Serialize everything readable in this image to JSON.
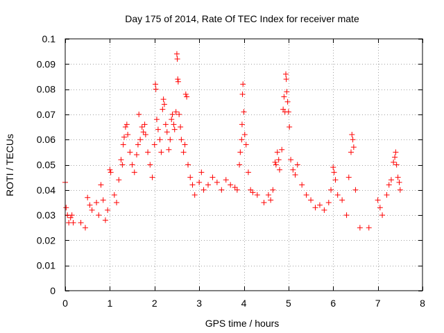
{
  "chart_data": {
    "type": "scatter",
    "title": "Day 175 of 2014, Rate Of TEC Index for receiver mate",
    "xlabel": "GPS time / hours",
    "ylabel": "ROTI / TECUs",
    "xlim": [
      0,
      8
    ],
    "ylim": [
      0,
      0.1
    ],
    "xticks": [
      0,
      1,
      2,
      3,
      4,
      5,
      6,
      7,
      8
    ],
    "yticks": [
      0,
      0.01,
      0.02,
      0.03,
      0.04,
      0.05,
      0.06,
      0.07,
      0.08,
      0.09,
      0.1
    ],
    "xtick_labels": [
      "0",
      "1",
      "2",
      "3",
      "4",
      "5",
      "6",
      "7",
      "8"
    ],
    "ytick_labels": [
      "0",
      "0.01",
      "0.02",
      "0.03",
      "0.04",
      "0.05",
      "0.06",
      "0.07",
      "0.08",
      "0.09",
      "0.1"
    ],
    "grid": true,
    "marker": "plus",
    "color": "#ff0000",
    "series": [
      {
        "name": "ROTI",
        "points": [
          [
            0.0,
            0.043
          ],
          [
            0.02,
            0.033
          ],
          [
            0.05,
            0.03
          ],
          [
            0.08,
            0.027
          ],
          [
            0.12,
            0.029
          ],
          [
            0.15,
            0.03
          ],
          [
            0.18,
            0.027
          ],
          [
            0.35,
            0.027
          ],
          [
            0.45,
            0.025
          ],
          [
            0.5,
            0.037
          ],
          [
            0.55,
            0.034
          ],
          [
            0.6,
            0.032
          ],
          [
            0.7,
            0.035
          ],
          [
            0.75,
            0.03
          ],
          [
            0.8,
            0.042
          ],
          [
            0.85,
            0.036
          ],
          [
            0.9,
            0.028
          ],
          [
            0.95,
            0.032
          ],
          [
            1.0,
            0.048
          ],
          [
            1.02,
            0.047
          ],
          [
            1.1,
            0.038
          ],
          [
            1.15,
            0.035
          ],
          [
            1.2,
            0.044
          ],
          [
            1.25,
            0.052
          ],
          [
            1.28,
            0.05
          ],
          [
            1.3,
            0.058
          ],
          [
            1.32,
            0.061
          ],
          [
            1.35,
            0.065
          ],
          [
            1.38,
            0.066
          ],
          [
            1.4,
            0.062
          ],
          [
            1.45,
            0.055
          ],
          [
            1.5,
            0.05
          ],
          [
            1.55,
            0.047
          ],
          [
            1.6,
            0.054
          ],
          [
            1.63,
            0.058
          ],
          [
            1.65,
            0.07
          ],
          [
            1.68,
            0.06
          ],
          [
            1.72,
            0.065
          ],
          [
            1.75,
            0.063
          ],
          [
            1.78,
            0.066
          ],
          [
            1.8,
            0.062
          ],
          [
            1.85,
            0.055
          ],
          [
            1.9,
            0.05
          ],
          [
            1.95,
            0.045
          ],
          [
            2.0,
            0.058
          ],
          [
            2.02,
            0.082
          ],
          [
            2.03,
            0.08
          ],
          [
            2.05,
            0.068
          ],
          [
            2.08,
            0.064
          ],
          [
            2.12,
            0.06
          ],
          [
            2.15,
            0.055
          ],
          [
            2.18,
            0.072
          ],
          [
            2.2,
            0.076
          ],
          [
            2.22,
            0.074
          ],
          [
            2.25,
            0.066
          ],
          [
            2.28,
            0.063
          ],
          [
            2.32,
            0.056
          ],
          [
            2.35,
            0.06
          ],
          [
            2.38,
            0.068
          ],
          [
            2.4,
            0.07
          ],
          [
            2.43,
            0.066
          ],
          [
            2.45,
            0.064
          ],
          [
            2.48,
            0.071
          ],
          [
            2.5,
            0.094
          ],
          [
            2.51,
            0.092
          ],
          [
            2.52,
            0.084
          ],
          [
            2.53,
            0.083
          ],
          [
            2.55,
            0.07
          ],
          [
            2.58,
            0.065
          ],
          [
            2.6,
            0.06
          ],
          [
            2.65,
            0.055
          ],
          [
            2.68,
            0.058
          ],
          [
            2.7,
            0.078
          ],
          [
            2.72,
            0.077
          ],
          [
            2.75,
            0.05
          ],
          [
            2.8,
            0.045
          ],
          [
            2.85,
            0.042
          ],
          [
            2.9,
            0.038
          ],
          [
            3.0,
            0.043
          ],
          [
            3.05,
            0.047
          ],
          [
            3.1,
            0.04
          ],
          [
            3.2,
            0.042
          ],
          [
            3.3,
            0.045
          ],
          [
            3.4,
            0.043
          ],
          [
            3.5,
            0.04
          ],
          [
            3.6,
            0.044
          ],
          [
            3.7,
            0.042
          ],
          [
            3.8,
            0.041
          ],
          [
            3.85,
            0.04
          ],
          [
            3.9,
            0.05
          ],
          [
            3.92,
            0.055
          ],
          [
            3.95,
            0.06
          ],
          [
            3.96,
            0.066
          ],
          [
            3.97,
            0.078
          ],
          [
            3.98,
            0.082
          ],
          [
            4.0,
            0.071
          ],
          [
            4.02,
            0.062
          ],
          [
            4.05,
            0.058
          ],
          [
            4.1,
            0.047
          ],
          [
            4.15,
            0.04
          ],
          [
            4.2,
            0.039
          ],
          [
            4.3,
            0.038
          ],
          [
            4.45,
            0.035
          ],
          [
            4.55,
            0.038
          ],
          [
            4.6,
            0.036
          ],
          [
            4.65,
            0.04
          ],
          [
            4.7,
            0.051
          ],
          [
            4.72,
            0.05
          ],
          [
            4.75,
            0.055
          ],
          [
            4.78,
            0.052
          ],
          [
            4.8,
            0.048
          ],
          [
            4.85,
            0.056
          ],
          [
            4.88,
            0.072
          ],
          [
            4.9,
            0.077
          ],
          [
            4.92,
            0.071
          ],
          [
            4.94,
            0.086
          ],
          [
            4.95,
            0.084
          ],
          [
            4.96,
            0.079
          ],
          [
            4.98,
            0.075
          ],
          [
            5.0,
            0.071
          ],
          [
            5.02,
            0.065
          ],
          [
            5.05,
            0.052
          ],
          [
            5.1,
            0.048
          ],
          [
            5.15,
            0.046
          ],
          [
            5.2,
            0.05
          ],
          [
            5.3,
            0.042
          ],
          [
            5.4,
            0.038
          ],
          [
            5.5,
            0.036
          ],
          [
            5.6,
            0.033
          ],
          [
            5.7,
            0.034
          ],
          [
            5.8,
            0.032
          ],
          [
            5.9,
            0.035
          ],
          [
            5.95,
            0.04
          ],
          [
            6.0,
            0.049
          ],
          [
            6.02,
            0.047
          ],
          [
            6.05,
            0.044
          ],
          [
            6.1,
            0.038
          ],
          [
            6.2,
            0.036
          ],
          [
            6.3,
            0.03
          ],
          [
            6.35,
            0.045
          ],
          [
            6.4,
            0.055
          ],
          [
            6.42,
            0.062
          ],
          [
            6.44,
            0.06
          ],
          [
            6.46,
            0.057
          ],
          [
            6.5,
            0.04
          ],
          [
            6.6,
            0.025
          ],
          [
            6.8,
            0.025
          ],
          [
            7.0,
            0.036
          ],
          [
            7.05,
            0.033
          ],
          [
            7.1,
            0.03
          ],
          [
            7.2,
            0.038
          ],
          [
            7.25,
            0.042
          ],
          [
            7.3,
            0.044
          ],
          [
            7.35,
            0.051
          ],
          [
            7.38,
            0.053
          ],
          [
            7.4,
            0.055
          ],
          [
            7.42,
            0.05
          ],
          [
            7.45,
            0.045
          ],
          [
            7.48,
            0.043
          ],
          [
            7.5,
            0.04
          ]
        ]
      }
    ]
  }
}
